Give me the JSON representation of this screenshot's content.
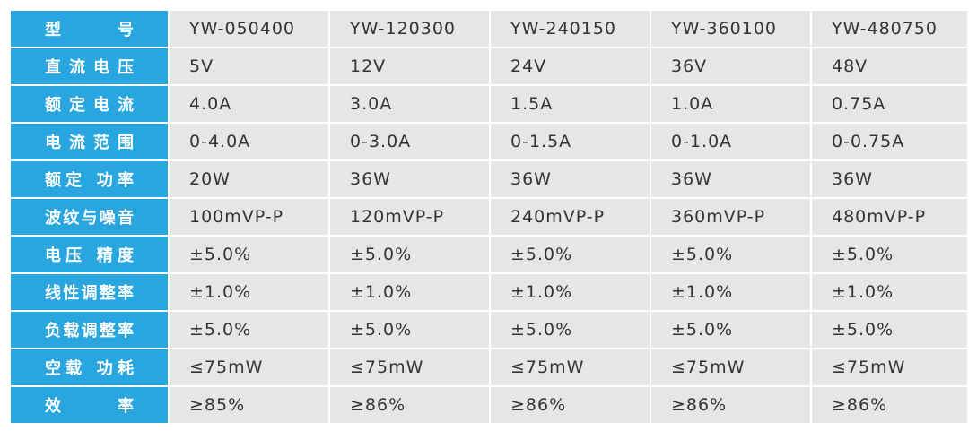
{
  "table": {
    "rows": [
      [
        "型 号",
        "YW-050400",
        "YW-120300",
        "YW-240150",
        "YW-360100",
        "YW-480750"
      ],
      [
        "直流电压",
        "5V",
        "12V",
        "24V",
        "36V",
        "48V"
      ],
      [
        "额定电流",
        "4.0A",
        "3.0A",
        "1.5A",
        "1.0A",
        "0.75A"
      ],
      [
        "电流范围",
        "0-4.0A",
        "0-3.0A",
        "0-1.5A",
        "0-1.0A",
        "0-0.75A"
      ],
      [
        "额定 功率",
        "20W",
        "36W",
        "36W",
        "36W",
        "36W"
      ],
      [
        "波纹与噪音",
        "100mVP-P",
        "120mVP-P",
        "240mVP-P",
        "360mVP-P",
        "480mVP-P"
      ],
      [
        "电压 精度",
        "±5.0%",
        "±5.0%",
        "±5.0%",
        "±5.0%",
        "±5.0%"
      ],
      [
        "线性调整率",
        "±1.0%",
        "±1.0%",
        "±1.0%",
        "±1.0%",
        "±1.0%"
      ],
      [
        "负载调整率",
        "±5.0%",
        "±5.0%",
        "±5.0%",
        "±5.0%",
        "±5.0%"
      ],
      [
        "空载 功耗",
        "≤75mW",
        "≤75mW",
        "≤75mW",
        "≤75mW",
        "≤75mW"
      ],
      [
        "效 率",
        "≥85%",
        "≥86%",
        "≥86%",
        "≥86%",
        "≥86%"
      ]
    ]
  }
}
